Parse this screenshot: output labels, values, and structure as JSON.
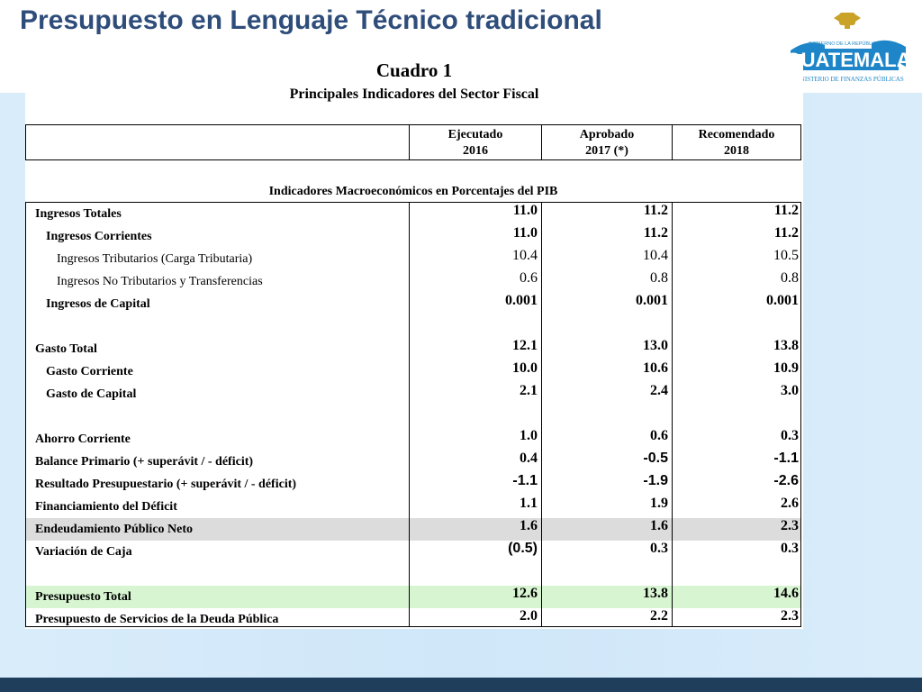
{
  "slide_title": "Presupuesto en Lenguaje Técnico tradicional",
  "logo": {
    "top_text": "GOBIERNO DE LA REPÚBLICA DE",
    "name": "GUATEMALA",
    "bottom_text": "MINISTERIO DE FINANZAS PÚBLICAS",
    "colors": {
      "blue": "#1e86c8",
      "gold": "#c9a227"
    }
  },
  "cuadro": {
    "title": "Cuadro 1",
    "subtitle": "Principales Indicadores del Sector Fiscal",
    "columns": [
      {
        "line1": "Ejecutado",
        "line2": "2016"
      },
      {
        "line1": "Aprobado",
        "line2": "2017 (*)"
      },
      {
        "line1": "Recomendado",
        "line2": "2018"
      }
    ],
    "section_title": "Indicadores Macroeconómicos en Porcentajes del PIB",
    "rows": [
      {
        "label": "Ingresos Totales",
        "values": [
          "11.0",
          "11.2",
          "11.2"
        ]
      },
      {
        "label": "Ingresos Corrientes",
        "values": [
          "11.0",
          "11.2",
          "11.2"
        ]
      },
      {
        "label": "Ingresos Tributarios (Carga Tributaria)",
        "values": [
          "10.4",
          "10.4",
          "10.5"
        ]
      },
      {
        "label": "Ingresos No Tributarios y Transferencias",
        "values": [
          "0.6",
          "0.8",
          "0.8"
        ]
      },
      {
        "label": "Ingresos de Capital",
        "values": [
          "0.001",
          "0.001",
          "0.001"
        ]
      },
      {
        "label": "Gasto Total",
        "values": [
          "12.1",
          "13.0",
          "13.8"
        ]
      },
      {
        "label": "Gasto Corriente",
        "values": [
          "10.0",
          "10.6",
          "10.9"
        ]
      },
      {
        "label": "Gasto de Capital",
        "values": [
          "2.1",
          "2.4",
          "3.0"
        ]
      },
      {
        "label": "Ahorro Corriente",
        "values": [
          "1.0",
          "0.6",
          "0.3"
        ]
      },
      {
        "label": "Balance Primario (+ superávit / - déficit)",
        "values": [
          "0.4",
          "-0.5",
          "-1.1"
        ]
      },
      {
        "label": "Resultado Presupuestario (+ superávit / - déficit)",
        "values": [
          "-1.1",
          "-1.9",
          "-2.6"
        ]
      },
      {
        "label": "Financiamiento del Déficit",
        "values": [
          "1.1",
          "1.9",
          "2.6"
        ]
      },
      {
        "label": "Endeudamiento Público Neto",
        "values": [
          "1.6",
          "1.6",
          "2.3"
        ]
      },
      {
        "label": "Variación de Caja",
        "values": [
          "(0.5)",
          "0.3",
          "0.3"
        ]
      },
      {
        "label": "Presupuesto Total",
        "values": [
          "12.6",
          "13.8",
          "14.6"
        ]
      },
      {
        "label": "Presupuesto de Servicios de la Deuda Pública",
        "values": [
          "2.0",
          "2.2",
          "2.3"
        ]
      }
    ]
  }
}
